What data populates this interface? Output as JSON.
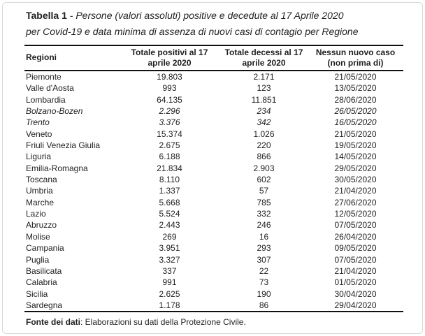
{
  "page": {
    "background": "#ffffff",
    "frame_border_color": "#d8d8d8",
    "rule_color": "#111111",
    "text_color": "#1f1f1f"
  },
  "title": {
    "bold": "Tabella 1",
    "dash": " - ",
    "italic_line1": "Persone (valori assoluti) positive e decedute al 17 Aprile 2020",
    "italic_line2": "per Covid-19 e data minima di assenza di nuovi casi di contagio per Regione"
  },
  "table": {
    "headers": [
      {
        "line1": "Regioni",
        "line2": ""
      },
      {
        "line1": "Totale positivi al 17",
        "line2": "aprile 2020"
      },
      {
        "line1": "Totale decessi al 17",
        "line2": "aprile 2020"
      },
      {
        "line1": "Nessun nuovo caso",
        "line2": "(non prima di)"
      }
    ],
    "rows": [
      {
        "region": "Piemonte",
        "positives": "19.803",
        "deaths": "2.171",
        "no_new_case": "21/05/2020",
        "italic": false
      },
      {
        "region": "Valle d'Aosta",
        "positives": "993",
        "deaths": "123",
        "no_new_case": "13/05/2020",
        "italic": false
      },
      {
        "region": "Lombardia",
        "positives": "64.135",
        "deaths": "11.851",
        "no_new_case": "28/06/2020",
        "italic": false
      },
      {
        "region": "Bolzano-Bozen",
        "positives": "2.296",
        "deaths": "234",
        "no_new_case": "26/05/2020",
        "italic": true
      },
      {
        "region": "Trento",
        "positives": "3.376",
        "deaths": "342",
        "no_new_case": "16/05/2020",
        "italic": true
      },
      {
        "region": "Veneto",
        "positives": "15.374",
        "deaths": "1.026",
        "no_new_case": "21/05/2020",
        "italic": false
      },
      {
        "region": "Friuli Venezia Giulia",
        "positives": "2.675",
        "deaths": "220",
        "no_new_case": "19/05/2020",
        "italic": false
      },
      {
        "region": "Liguria",
        "positives": "6.188",
        "deaths": "866",
        "no_new_case": "14/05/2020",
        "italic": false
      },
      {
        "region": "Emilia-Romagna",
        "positives": "21.834",
        "deaths": "2.903",
        "no_new_case": "29/05/2020",
        "italic": false
      },
      {
        "region": "Toscana",
        "positives": "8.110",
        "deaths": "602",
        "no_new_case": "30/05/2020",
        "italic": false
      },
      {
        "region": "Umbria",
        "positives": "1.337",
        "deaths": "57",
        "no_new_case": "21/04/2020",
        "italic": false
      },
      {
        "region": "Marche",
        "positives": "5.668",
        "deaths": "785",
        "no_new_case": "27/06/2020",
        "italic": false
      },
      {
        "region": "Lazio",
        "positives": "5.524",
        "deaths": "332",
        "no_new_case": "12/05/2020",
        "italic": false
      },
      {
        "region": "Abruzzo",
        "positives": "2.443",
        "deaths": "246",
        "no_new_case": "07/05/2020",
        "italic": false
      },
      {
        "region": "Molise",
        "positives": "269",
        "deaths": "16",
        "no_new_case": "26/04/2020",
        "italic": false
      },
      {
        "region": "Campania",
        "positives": "3.951",
        "deaths": "293",
        "no_new_case": "09/05/2020",
        "italic": false
      },
      {
        "region": "Puglia",
        "positives": "3.327",
        "deaths": "307",
        "no_new_case": "07/05/2020",
        "italic": false
      },
      {
        "region": "Basilicata",
        "positives": "337",
        "deaths": "22",
        "no_new_case": "21/04/2020",
        "italic": false
      },
      {
        "region": "Calabria",
        "positives": "991",
        "deaths": "73",
        "no_new_case": "01/05/2020",
        "italic": false
      },
      {
        "region": "Sicilia",
        "positives": "2.625",
        "deaths": "190",
        "no_new_case": "30/04/2020",
        "italic": false
      },
      {
        "region": "Sardegna",
        "positives": "1.178",
        "deaths": "86",
        "no_new_case": "29/04/2020",
        "italic": false
      }
    ]
  },
  "footer": {
    "bold": "Fonte dei dati",
    "text": ": Elaborazioni su dati della Protezione Civile."
  }
}
